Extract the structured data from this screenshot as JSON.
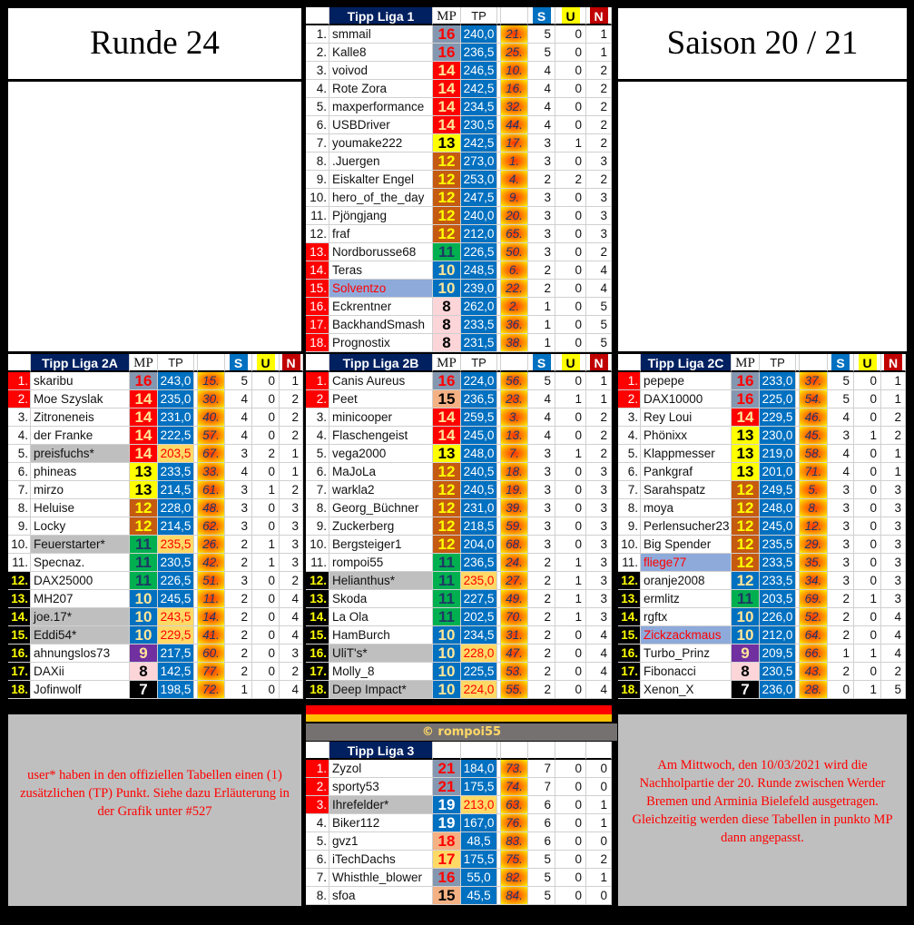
{
  "header_left": {
    "title": "Runde 24"
  },
  "header_right": {
    "title": "Saison 20 / 21"
  },
  "copyright": "© rompoi55",
  "note_left": "user* haben in den offiziellen Tabellen einen (1) zusätzlichen (TP) Punkt. Siehe dazu  Erläuterung in der Grafik unter #527",
  "note_right": "Am Mittwoch, den 10/03/2021 wird die Nachholpartie der 20. Runde zwischen Werder Bremen und Arminia Bielefeld ausgetragen. Gleichzeitig werden diese Tabellen in punkto MP dann angepasst.",
  "column_headers": {
    "mp": "MP",
    "tp": "TP",
    "s": "S",
    "u": "U",
    "n": "N"
  },
  "colors": {
    "title_bg": "#002060",
    "s_header": "#0070c0",
    "u_header": "#ffff00",
    "n_header": "#c00000",
    "promotion_rank": "#ff0000",
    "relegation_rank_bg": "#000000",
    "relegation_rank_text": "#ffff00",
    "star_name_bg": "#bfbfbf",
    "star_tp_bg": "#ffd966",
    "highlight_name_bg": "#8eaadb",
    "highlight_name_text": "#ff0000",
    "mp": {
      "21": [
        "#8497b0",
        "#ff0000"
      ],
      "19": [
        "#0070c0",
        "#ffffff"
      ],
      "18": [
        "#f4b183",
        "#ff0000"
      ],
      "17": [
        "#ffd966",
        "#ff0000"
      ],
      "16": [
        "#8497b0",
        "#ff0000"
      ],
      "15": [
        "#f4b183",
        "#000000"
      ],
      "14": [
        "#ff0000",
        "#ffe699"
      ],
      "13": [
        "#ffff00",
        "#000000"
      ],
      "12": [
        "#c55a11",
        "#ffff00"
      ],
      "11": [
        "#00b050",
        "#1f3864"
      ],
      "10": [
        "#0070c0",
        "#ffe699"
      ],
      "9": [
        "#7030a0",
        "#ffe699"
      ],
      "8": [
        "#fcd5d8",
        "#000000"
      ],
      "7": [
        "#000000",
        "#ffffff"
      ]
    }
  },
  "tables": [
    {
      "id": "liga1",
      "title": "Tipp Liga 1",
      "show_col_headers": true,
      "red_ranks": [
        13,
        14,
        15,
        16,
        17,
        18
      ],
      "black_ranks": [],
      "rows": [
        [
          "1.",
          "smmail",
          "16",
          "240,0",
          "21.",
          "5",
          "0",
          "1"
        ],
        [
          "2.",
          "Kalle8",
          "16",
          "236,5",
          "25.",
          "5",
          "0",
          "1"
        ],
        [
          "3.",
          "voivod",
          "14",
          "246,5",
          "10.",
          "4",
          "0",
          "2"
        ],
        [
          "4.",
          "Rote Zora",
          "14",
          "242,5",
          "16.",
          "4",
          "0",
          "2"
        ],
        [
          "5.",
          "maxperformance",
          "14",
          "234,5",
          "32.",
          "4",
          "0",
          "2"
        ],
        [
          "6.",
          "USBDriver",
          "14",
          "230,5",
          "44.",
          "4",
          "0",
          "2"
        ],
        [
          "7.",
          "youmake222",
          "13",
          "242,5",
          "17.",
          "3",
          "1",
          "2"
        ],
        [
          "8.",
          ".Juergen",
          "12",
          "273,0",
          "1.",
          "3",
          "0",
          "3"
        ],
        [
          "9.",
          "Eiskalter Engel",
          "12",
          "253,0",
          "4.",
          "2",
          "2",
          "2"
        ],
        [
          "10.",
          "hero_of_the_day",
          "12",
          "247,5",
          "9.",
          "3",
          "0",
          "3"
        ],
        [
          "11.",
          "Pjöngjang",
          "12",
          "240,0",
          "20.",
          "3",
          "0",
          "3"
        ],
        [
          "12.",
          "fraf",
          "12",
          "212,0",
          "65.",
          "3",
          "0",
          "3"
        ],
        [
          "13.",
          "Nordborusse68",
          "11",
          "226,5",
          "50.",
          "3",
          "0",
          "2"
        ],
        [
          "14.",
          "Teras",
          "10",
          "248,5",
          "6.",
          "2",
          "0",
          "4"
        ],
        [
          "15.",
          "Solventzo",
          "10",
          "239,0",
          "22.",
          "2",
          "0",
          "4",
          "highlight"
        ],
        [
          "16.",
          "Eckrentner",
          "8",
          "262,0",
          "2.",
          "1",
          "0",
          "5"
        ],
        [
          "17.",
          "BackhandSmash",
          "8",
          "233,5",
          "36.",
          "1",
          "0",
          "5"
        ],
        [
          "18.",
          "Prognostix",
          "8",
          "231,5",
          "38.",
          "1",
          "0",
          "5"
        ]
      ]
    },
    {
      "id": "liga2a",
      "title": "Tipp Liga 2A",
      "show_col_headers": true,
      "red_ranks": [
        1,
        2
      ],
      "black_ranks": [
        12,
        13,
        14,
        15,
        16,
        17,
        18
      ],
      "rows": [
        [
          "1.",
          "skaribu",
          "16",
          "243,0",
          "15.",
          "5",
          "0",
          "1"
        ],
        [
          "2.",
          "Moe Szyslak",
          "14",
          "235,0",
          "30.",
          "4",
          "0",
          "2"
        ],
        [
          "3.",
          "Zitroneneis",
          "14",
          "231,0",
          "40.",
          "4",
          "0",
          "2"
        ],
        [
          "4.",
          "der Franke",
          "14",
          "222,5",
          "57.",
          "4",
          "0",
          "2"
        ],
        [
          "5.",
          "preisfuchs*",
          "14",
          "203,5",
          "67.",
          "3",
          "2",
          "1",
          "star"
        ],
        [
          "6.",
          "phineas",
          "13",
          "233,5",
          "33.",
          "4",
          "0",
          "1"
        ],
        [
          "7.",
          "mirzo",
          "13",
          "214,5",
          "61.",
          "3",
          "1",
          "2"
        ],
        [
          "8.",
          "Heluise",
          "12",
          "228,0",
          "48.",
          "3",
          "0",
          "3"
        ],
        [
          "9.",
          "Locky",
          "12",
          "214,5",
          "62.",
          "3",
          "0",
          "3"
        ],
        [
          "10.",
          "Feuerstarter*",
          "11",
          "235,5",
          "26.",
          "2",
          "1",
          "3",
          "star"
        ],
        [
          "11.",
          "Specnaz.",
          "11",
          "230,5",
          "42.",
          "2",
          "1",
          "3"
        ],
        [
          "12.",
          "DAX25000",
          "11",
          "226,5",
          "51.",
          "3",
          "0",
          "2"
        ],
        [
          "13.",
          "MH207",
          "10",
          "245,5",
          "11.",
          "2",
          "0",
          "4"
        ],
        [
          "14.",
          "joe.17*",
          "10",
          "243,5",
          "14.",
          "2",
          "0",
          "4",
          "star"
        ],
        [
          "15.",
          "Eddi54*",
          "10",
          "229,5",
          "41.",
          "2",
          "0",
          "4",
          "star"
        ],
        [
          "16.",
          "ahnungslos73",
          "9",
          "217,5",
          "60.",
          "2",
          "0",
          "3"
        ],
        [
          "17.",
          "DAXii",
          "8",
          "142,5",
          "77.",
          "2",
          "0",
          "2"
        ],
        [
          "18.",
          "Jofinwolf",
          "7",
          "198,5",
          "72.",
          "1",
          "0",
          "4"
        ]
      ]
    },
    {
      "id": "liga2b",
      "title": "Tipp Liga 2B",
      "show_col_headers": true,
      "red_ranks": [
        1,
        2
      ],
      "black_ranks": [
        12,
        13,
        14,
        15,
        16,
        17,
        18
      ],
      "rows": [
        [
          "1.",
          "Canis Aureus",
          "16",
          "224,0",
          "56.",
          "5",
          "0",
          "1"
        ],
        [
          "2.",
          "Peet",
          "15",
          "236,5",
          "23.",
          "4",
          "1",
          "1"
        ],
        [
          "3.",
          "minicooper",
          "14",
          "259,5",
          "3.",
          "4",
          "0",
          "2"
        ],
        [
          "4.",
          "Flaschengeist",
          "14",
          "245,0",
          "13.",
          "4",
          "0",
          "2"
        ],
        [
          "5.",
          "vega2000",
          "13",
          "248,0",
          "7.",
          "3",
          "1",
          "2"
        ],
        [
          "6.",
          "MaJoLa",
          "12",
          "240,5",
          "18.",
          "3",
          "0",
          "3"
        ],
        [
          "7.",
          "warkla2",
          "12",
          "240,5",
          "19.",
          "3",
          "0",
          "3"
        ],
        [
          "8.",
          "Georg_Büchner",
          "12",
          "231,0",
          "39.",
          "3",
          "0",
          "3"
        ],
        [
          "9.",
          "Zuckerberg",
          "12",
          "218,5",
          "59.",
          "3",
          "0",
          "3"
        ],
        [
          "10.",
          "Bergsteiger1",
          "12",
          "204,0",
          "68.",
          "3",
          "0",
          "3"
        ],
        [
          "11.",
          "rompoi55",
          "11",
          "236,5",
          "24.",
          "2",
          "1",
          "3"
        ],
        [
          "12.",
          "Helianthus*",
          "11",
          "235,0",
          "27.",
          "2",
          "1",
          "3",
          "star"
        ],
        [
          "13.",
          "Skoda",
          "11",
          "227,5",
          "49.",
          "2",
          "1",
          "3"
        ],
        [
          "14.",
          "La Ola",
          "11",
          "202,5",
          "70.",
          "2",
          "1",
          "3"
        ],
        [
          "15.",
          "HamBurch",
          "10",
          "234,5",
          "31.",
          "2",
          "0",
          "4"
        ],
        [
          "16.",
          "UliT's*",
          "10",
          "228,0",
          "47.",
          "2",
          "0",
          "4",
          "star"
        ],
        [
          "17.",
          "Molly_8",
          "10",
          "225,5",
          "53.",
          "2",
          "0",
          "4"
        ],
        [
          "18.",
          "Deep Impact*",
          "10",
          "224,0",
          "55.",
          "2",
          "0",
          "4",
          "star"
        ]
      ]
    },
    {
      "id": "liga2c",
      "title": "Tipp Liga 2C",
      "show_col_headers": true,
      "red_ranks": [
        1,
        2
      ],
      "black_ranks": [
        12,
        13,
        14,
        15,
        16,
        17,
        18
      ],
      "rows": [
        [
          "1.",
          "pepepe",
          "16",
          "233,0",
          "37.",
          "5",
          "0",
          "1"
        ],
        [
          "2.",
          "DAX10000",
          "16",
          "225,0",
          "54.",
          "5",
          "0",
          "1"
        ],
        [
          "3.",
          "Rey Loui",
          "14",
          "229,5",
          "46.",
          "4",
          "0",
          "2"
        ],
        [
          "4.",
          "Phönixx",
          "13",
          "230,0",
          "45.",
          "3",
          "1",
          "2"
        ],
        [
          "5.",
          "Klappmesser",
          "13",
          "219,0",
          "58.",
          "4",
          "0",
          "1"
        ],
        [
          "6.",
          "Pankgraf",
          "13",
          "201,0",
          "71.",
          "4",
          "0",
          "1"
        ],
        [
          "7.",
          "Sarahspatz",
          "12",
          "249,5",
          "5.",
          "3",
          "0",
          "3"
        ],
        [
          "8.",
          "moya",
          "12",
          "248,0",
          "8.",
          "3",
          "0",
          "3"
        ],
        [
          "9.",
          "Perlensucher23",
          "12",
          "245,0",
          "12.",
          "3",
          "0",
          "3"
        ],
        [
          "10.",
          "Big Spender",
          "12",
          "235,5",
          "29.",
          "3",
          "0",
          "3"
        ],
        [
          "11.",
          "fliege77",
          "12",
          "233,5",
          "35.",
          "3",
          "0",
          "3",
          "highlight"
        ],
        [
          "12.",
          "oranje2008",
          "12",
          "233,5",
          "34.",
          "3",
          "0",
          "3",
          "mpblue"
        ],
        [
          "13.",
          "ermlitz",
          "11",
          "203,5",
          "69.",
          "2",
          "1",
          "3"
        ],
        [
          "14.",
          "rgftx",
          "10",
          "226,0",
          "52.",
          "2",
          "0",
          "4"
        ],
        [
          "15.",
          "Zickzackmaus",
          "10",
          "212,0",
          "64.",
          "2",
          "0",
          "4",
          "highlight"
        ],
        [
          "16.",
          "Turbo_Prinz",
          "9",
          "209,5",
          "66.",
          "1",
          "1",
          "4"
        ],
        [
          "17.",
          "Fibonacci",
          "8",
          "230,5",
          "43.",
          "2",
          "0",
          "2"
        ],
        [
          "18.",
          "Xenon_X",
          "7",
          "236,0",
          "28.",
          "0",
          "1",
          "5"
        ]
      ]
    },
    {
      "id": "liga3",
      "title": "Tipp Liga 3",
      "show_col_headers": false,
      "red_ranks": [
        1,
        2,
        3
      ],
      "black_ranks": [],
      "rows": [
        [
          "1.",
          "Zyzol",
          "21",
          "184,0",
          "73.",
          "7",
          "0",
          "0"
        ],
        [
          "2.",
          "sporty53",
          "21",
          "175,5",
          "74.",
          "7",
          "0",
          "0"
        ],
        [
          "3.",
          "Ihrefelder*",
          "19",
          "213,0",
          "63.",
          "6",
          "0",
          "1",
          "star"
        ],
        [
          "4.",
          "Biker112",
          "19",
          "167,0",
          "76.",
          "6",
          "0",
          "1"
        ],
        [
          "5.",
          "gvz1",
          "18",
          "48,5",
          "83.",
          "6",
          "0",
          "0"
        ],
        [
          "6.",
          "iTechDachs",
          "17",
          "175,5",
          "75.",
          "5",
          "0",
          "2"
        ],
        [
          "7.",
          "Whisthle_blower",
          "16",
          "55,0",
          "82.",
          "5",
          "0",
          "1"
        ],
        [
          "8.",
          "sfoa",
          "15",
          "45,5",
          "84.",
          "5",
          "0",
          "0"
        ]
      ]
    }
  ]
}
